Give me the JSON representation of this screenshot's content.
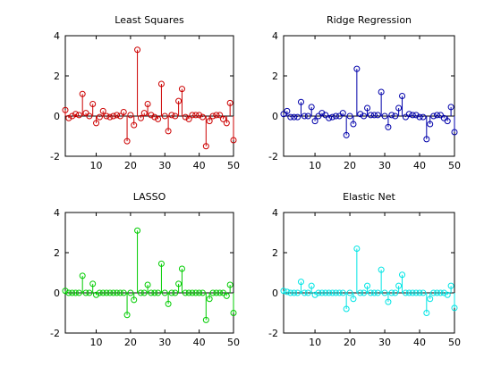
{
  "chart_data": [
    {
      "type": "stem",
      "title": "Least Squares",
      "color": "#cc0000",
      "xlim": [
        1,
        50
      ],
      "ylim": [
        -2,
        4
      ],
      "xticks": [
        10,
        20,
        30,
        40,
        50
      ],
      "yticks": [
        -2,
        0,
        2,
        4
      ],
      "x": [
        1,
        2,
        3,
        4,
        5,
        6,
        7,
        8,
        9,
        10,
        11,
        12,
        13,
        14,
        15,
        16,
        17,
        18,
        19,
        20,
        21,
        22,
        23,
        24,
        25,
        26,
        27,
        28,
        29,
        30,
        31,
        32,
        33,
        34,
        35,
        36,
        37,
        38,
        39,
        40,
        41,
        42,
        43,
        44,
        45,
        46,
        47,
        48,
        49,
        50
      ],
      "values": [
        0.3,
        -0.1,
        0.0,
        0.1,
        0.05,
        1.1,
        0.15,
        0.0,
        0.6,
        -0.35,
        -0.05,
        0.25,
        0.0,
        -0.05,
        0.0,
        0.05,
        0.0,
        0.2,
        -1.25,
        0.05,
        -0.45,
        3.3,
        -0.1,
        0.15,
        0.6,
        0.05,
        -0.05,
        -0.15,
        1.6,
        0.0,
        -0.75,
        0.05,
        0.0,
        0.75,
        1.35,
        -0.05,
        -0.15,
        0.05,
        0.05,
        0.05,
        -0.05,
        -1.5,
        -0.25,
        0.0,
        0.05,
        0.05,
        -0.15,
        -0.35,
        0.65,
        -1.2
      ]
    },
    {
      "type": "stem",
      "title": "Ridge Regression",
      "color": "#0000aa",
      "xlim": [
        1,
        50
      ],
      "ylim": [
        -2,
        4
      ],
      "xticks": [
        10,
        20,
        30,
        40,
        50
      ],
      "yticks": [
        -2,
        0,
        2,
        4
      ],
      "x": [
        1,
        2,
        3,
        4,
        5,
        6,
        7,
        8,
        9,
        10,
        11,
        12,
        13,
        14,
        15,
        16,
        17,
        18,
        19,
        20,
        21,
        22,
        23,
        24,
        25,
        26,
        27,
        28,
        29,
        30,
        31,
        32,
        33,
        34,
        35,
        36,
        37,
        38,
        39,
        40,
        41,
        42,
        43,
        44,
        45,
        46,
        47,
        48,
        49,
        50
      ],
      "values": [
        0.1,
        0.25,
        -0.05,
        -0.05,
        -0.05,
        0.7,
        0.0,
        0.0,
        0.45,
        -0.25,
        0.0,
        0.15,
        0.05,
        -0.1,
        -0.05,
        0.0,
        0.0,
        0.15,
        -0.95,
        0.0,
        -0.4,
        2.35,
        0.1,
        0.0,
        0.4,
        0.05,
        0.05,
        0.05,
        1.2,
        0.0,
        -0.55,
        0.05,
        0.0,
        0.4,
        1.0,
        -0.05,
        0.1,
        0.05,
        0.05,
        -0.05,
        -0.05,
        -1.15,
        -0.4,
        0.0,
        0.05,
        0.05,
        -0.1,
        -0.25,
        0.45,
        -0.8
      ]
    },
    {
      "type": "stem",
      "title": "LASSO",
      "color": "#00cc00",
      "xlim": [
        1,
        50
      ],
      "ylim": [
        -2,
        4
      ],
      "xticks": [
        10,
        20,
        30,
        40,
        50
      ],
      "yticks": [
        -2,
        0,
        2,
        4
      ],
      "x": [
        1,
        2,
        3,
        4,
        5,
        6,
        7,
        8,
        9,
        10,
        11,
        12,
        13,
        14,
        15,
        16,
        17,
        18,
        19,
        20,
        21,
        22,
        23,
        24,
        25,
        26,
        27,
        28,
        29,
        30,
        31,
        32,
        33,
        34,
        35,
        36,
        37,
        38,
        39,
        40,
        41,
        42,
        43,
        44,
        45,
        46,
        47,
        48,
        49,
        50
      ],
      "values": [
        0.1,
        0.0,
        0.0,
        0.0,
        0.0,
        0.85,
        0.0,
        0.0,
        0.45,
        -0.1,
        0.0,
        0.0,
        0.0,
        0.0,
        0.0,
        0.0,
        0.0,
        0.0,
        -1.1,
        0.0,
        -0.35,
        3.1,
        0.0,
        0.0,
        0.4,
        0.0,
        0.0,
        0.0,
        1.45,
        0.0,
        -0.55,
        0.0,
        0.0,
        0.45,
        1.2,
        0.0,
        0.0,
        0.0,
        0.0,
        0.0,
        0.0,
        -1.35,
        -0.3,
        0.0,
        0.0,
        0.0,
        0.0,
        -0.15,
        0.4,
        -1.0
      ]
    },
    {
      "type": "stem",
      "title": "Elastic Net",
      "color": "#00e5e5",
      "xlim": [
        1,
        50
      ],
      "ylim": [
        -2,
        4
      ],
      "xticks": [
        10,
        20,
        30,
        40,
        50
      ],
      "yticks": [
        -2,
        0,
        2,
        4
      ],
      "x": [
        1,
        2,
        3,
        4,
        5,
        6,
        7,
        8,
        9,
        10,
        11,
        12,
        13,
        14,
        15,
        16,
        17,
        18,
        19,
        20,
        21,
        22,
        23,
        24,
        25,
        26,
        27,
        28,
        29,
        30,
        31,
        32,
        33,
        34,
        35,
        36,
        37,
        38,
        39,
        40,
        41,
        42,
        43,
        44,
        45,
        46,
        47,
        48,
        49,
        50
      ],
      "values": [
        0.1,
        0.05,
        0.0,
        0.0,
        0.0,
        0.55,
        0.0,
        0.0,
        0.35,
        -0.1,
        0.0,
        0.0,
        0.0,
        0.0,
        0.0,
        0.0,
        0.0,
        0.0,
        -0.8,
        0.0,
        -0.3,
        2.2,
        0.0,
        0.0,
        0.35,
        0.0,
        0.0,
        0.0,
        1.15,
        0.0,
        -0.45,
        0.0,
        0.0,
        0.35,
        0.9,
        0.0,
        0.0,
        0.0,
        0.0,
        0.0,
        0.0,
        -1.0,
        -0.3,
        0.0,
        0.0,
        0.0,
        0.0,
        -0.1,
        0.35,
        -0.75
      ]
    }
  ]
}
